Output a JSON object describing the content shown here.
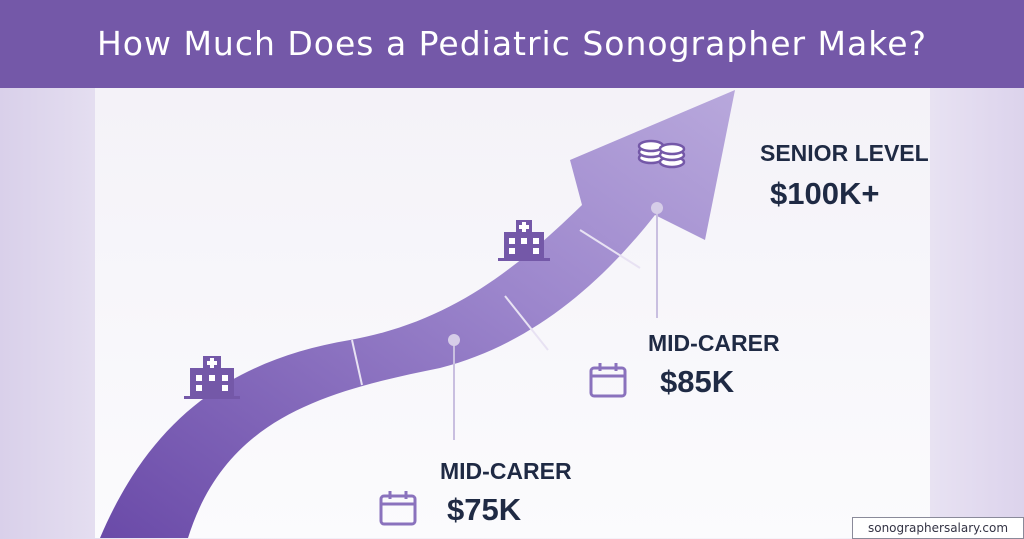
{
  "header": {
    "title": "How Much Does a Pediatric Sonographer Make?"
  },
  "milestones": [
    {
      "label": "MID-CARER",
      "salary": "$75K"
    },
    {
      "label": "MID-CARER",
      "salary": "$85K"
    },
    {
      "label": "SENIOR LEVEL",
      "salary": "$100K+"
    }
  ],
  "footer": {
    "source": "sonographersalary.com"
  }
}
